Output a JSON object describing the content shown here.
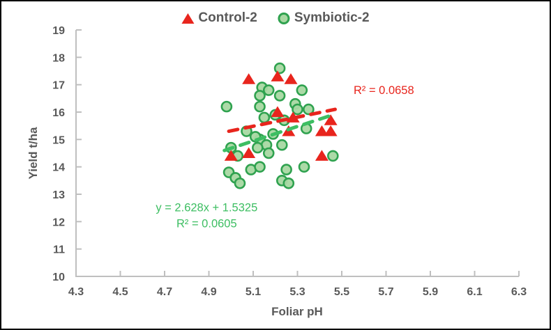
{
  "chart_data": {
    "type": "scatter",
    "title": "",
    "xlabel": "Foliar pH",
    "ylabel": "Yield t/ha",
    "xlim": [
      4.3,
      6.3
    ],
    "ylim": [
      10,
      19
    ],
    "xticks": [
      "4.3",
      "4.5",
      "4.7",
      "4.9",
      "5.1",
      "5.3",
      "5.5",
      "5.7",
      "5.9",
      "6.1",
      "6.3"
    ],
    "yticks": [
      "10",
      "11",
      "12",
      "13",
      "14",
      "15",
      "16",
      "17",
      "18",
      "19"
    ],
    "grid": false,
    "legend_position": "top-center",
    "series": [
      {
        "name": "Control-2",
        "marker": "triangle",
        "color": "#E8251D",
        "points": [
          [
            5.08,
            17.2
          ],
          [
            5.21,
            17.3
          ],
          [
            5.27,
            17.2
          ],
          [
            5.21,
            16.0
          ],
          [
            5.28,
            15.8
          ],
          [
            5.45,
            15.7
          ],
          [
            5.26,
            15.3
          ],
          [
            5.41,
            15.3
          ],
          [
            5.45,
            15.3
          ],
          [
            5.08,
            14.5
          ],
          [
            5.0,
            14.4
          ],
          [
            5.41,
            14.4
          ]
        ],
        "trendline": {
          "x1": 4.99,
          "y1": 15.3,
          "x2": 5.47,
          "y2": 16.1,
          "style": "dashed",
          "color": "#E8251D",
          "r_squared": 0.0658
        }
      },
      {
        "name": "Symbiotic-2",
        "marker": "circle",
        "fill": "#A8D8A2",
        "color": "#2FA24F",
        "points": [
          [
            5.22,
            17.6
          ],
          [
            5.14,
            16.9
          ],
          [
            5.17,
            16.8
          ],
          [
            5.32,
            16.8
          ],
          [
            5.13,
            16.6
          ],
          [
            5.22,
            16.6
          ],
          [
            4.98,
            16.2
          ],
          [
            5.29,
            16.3
          ],
          [
            5.3,
            16.1
          ],
          [
            5.35,
            16.1
          ],
          [
            5.13,
            16.2
          ],
          [
            5.15,
            15.8
          ],
          [
            5.2,
            15.9
          ],
          [
            5.24,
            15.7
          ],
          [
            5.07,
            15.3
          ],
          [
            5.19,
            15.2
          ],
          [
            5.34,
            15.4
          ],
          [
            5.13,
            15.0
          ],
          [
            5.11,
            15.1
          ],
          [
            5.16,
            14.8
          ],
          [
            5.23,
            14.8
          ],
          [
            5.0,
            14.7
          ],
          [
            5.12,
            14.7
          ],
          [
            5.03,
            14.4
          ],
          [
            5.17,
            14.5
          ],
          [
            5.46,
            14.4
          ],
          [
            5.09,
            13.9
          ],
          [
            5.13,
            14.0
          ],
          [
            5.33,
            14.0
          ],
          [
            5.25,
            13.9
          ],
          [
            4.99,
            13.8
          ],
          [
            5.02,
            13.6
          ],
          [
            5.04,
            13.4
          ],
          [
            5.23,
            13.5
          ],
          [
            5.26,
            13.4
          ]
        ],
        "trendline": {
          "x1": 4.97,
          "y1": 14.6,
          "x2": 5.46,
          "y2": 15.9,
          "style": "dashed",
          "color": "#3DBE62",
          "equation": "y = 2.628x + 1.5325",
          "r_squared": 0.0605
        }
      }
    ],
    "annotations": [
      {
        "lines": [
          "R² = 0.0658"
        ],
        "color": "#E8251D",
        "x": 5.69,
        "y": 16.8
      },
      {
        "lines": [
          "y = 2.628x + 1.5325",
          "R² = 0.0605"
        ],
        "color": "#3DBE62",
        "x": 4.89,
        "y": 12.2
      }
    ],
    "colors": {
      "axis_line": "#BFBFBF",
      "tick_text": "#595959",
      "legend_text": "#595959",
      "background": "#FFFFFF",
      "border": "#000000"
    }
  }
}
